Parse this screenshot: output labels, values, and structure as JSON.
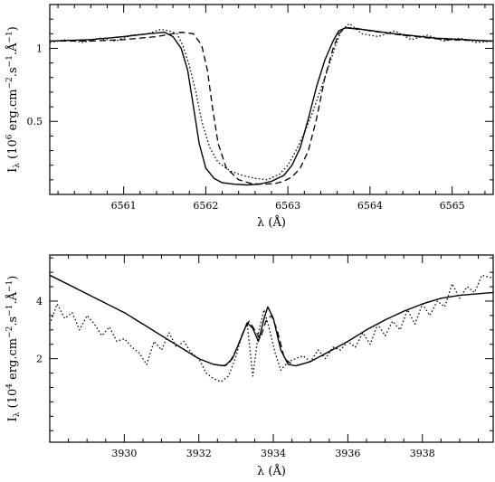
{
  "chart_data": [
    {
      "type": "line",
      "xlim": [
        6560.1,
        6565.5
      ],
      "ylim": [
        0.0,
        1.3
      ],
      "xticks_major": [
        6561,
        6562,
        6563,
        6564,
        6565
      ],
      "xtick_labels": [
        "6561",
        "6562",
        "6563",
        "6564",
        "6565"
      ],
      "yticks_major": [
        0.5,
        1.0
      ],
      "ytick_labels": [
        "0.5",
        "1"
      ],
      "xlabel": "λ (Å)",
      "ylabel": {
        "main": "I",
        "sub": "λ",
        "unit": " (10",
        "exp": "6",
        "unit2": " erg.cm",
        "e1": "−2",
        "mid": ".s",
        "e2": "−1",
        "mid2": ".Å",
        "e3": "−1",
        "end": ")"
      },
      "grid": false,
      "series": [
        {
          "style": "solid",
          "x": [
            6560.1,
            6560.6,
            6561.0,
            6561.3,
            6561.5,
            6561.6,
            6561.7,
            6561.78,
            6561.85,
            6561.92,
            6562.0,
            6562.1,
            6562.2,
            6562.35,
            6562.5,
            6562.65,
            6562.8,
            6562.95,
            6563.05,
            6563.15,
            6563.25,
            6563.35,
            6563.45,
            6563.55,
            6563.62,
            6563.7,
            6563.9,
            6564.3,
            6564.8,
            6565.5
          ],
          "y": [
            1.05,
            1.06,
            1.08,
            1.1,
            1.11,
            1.08,
            1.0,
            0.85,
            0.6,
            0.35,
            0.18,
            0.11,
            0.08,
            0.07,
            0.065,
            0.07,
            0.09,
            0.13,
            0.2,
            0.32,
            0.52,
            0.74,
            0.92,
            1.05,
            1.12,
            1.14,
            1.13,
            1.1,
            1.07,
            1.05
          ]
        },
        {
          "style": "dashed",
          "x": [
            6560.1,
            6560.6,
            6561.0,
            6561.4,
            6561.7,
            6561.85,
            6561.95,
            6562.02,
            6562.08,
            6562.15,
            6562.25,
            6562.4,
            6562.55,
            6562.7,
            6562.85,
            6562.95,
            6563.05,
            6563.15,
            6563.25,
            6563.35,
            6563.45,
            6563.55,
            6563.62,
            6563.7,
            6563.8,
            6564.0,
            6564.4,
            6564.9,
            6565.5
          ],
          "y": [
            1.05,
            1.05,
            1.06,
            1.08,
            1.11,
            1.1,
            1.02,
            0.85,
            0.6,
            0.35,
            0.18,
            0.1,
            0.075,
            0.07,
            0.075,
            0.09,
            0.12,
            0.18,
            0.3,
            0.52,
            0.8,
            1.0,
            1.1,
            1.14,
            1.14,
            1.12,
            1.09,
            1.06,
            1.05
          ]
        },
        {
          "style": "dotted",
          "x": [
            6560.1,
            6560.3,
            6560.5,
            6560.7,
            6560.9,
            6561.1,
            6561.3,
            6561.45,
            6561.55,
            6561.65,
            6561.72,
            6561.8,
            6561.88,
            6561.95,
            6562.05,
            6562.15,
            6562.3,
            6562.45,
            6562.6,
            6562.75,
            6562.9,
            6563.0,
            6563.1,
            6563.2,
            6563.3,
            6563.4,
            6563.5,
            6563.58,
            6563.65,
            6563.75,
            6563.9,
            6564.1,
            6564.3,
            6564.5,
            6564.7,
            6564.9,
            6565.1,
            6565.3,
            6565.5
          ],
          "y": [
            1.04,
            1.06,
            1.04,
            1.07,
            1.05,
            1.09,
            1.1,
            1.13,
            1.12,
            1.1,
            1.02,
            0.88,
            0.7,
            0.5,
            0.32,
            0.22,
            0.16,
            0.13,
            0.11,
            0.1,
            0.14,
            0.2,
            0.3,
            0.42,
            0.56,
            0.72,
            0.88,
            1.02,
            1.12,
            1.17,
            1.1,
            1.08,
            1.12,
            1.06,
            1.09,
            1.05,
            1.07,
            1.04,
            1.05
          ]
        }
      ]
    },
    {
      "type": "line",
      "xlim": [
        3928.0,
        3939.9
      ],
      "ylim": [
        -0.9,
        5.6
      ],
      "xticks_major": [
        3930,
        3932,
        3934,
        3936,
        3938
      ],
      "xtick_labels": [
        "3930",
        "3932",
        "3934",
        "3936",
        "3938"
      ],
      "yticks_major": [
        2,
        4
      ],
      "ytick_labels": [
        "2",
        "4"
      ],
      "xlabel": "λ (Å)",
      "ylabel": {
        "main": "I",
        "sub": "λ",
        "unit": " (10",
        "exp": "4",
        "unit2": " erg.cm",
        "e1": "−2",
        "mid": ".s",
        "e2": "−1",
        "mid2": ".Å",
        "e3": "−1",
        "end": ")"
      },
      "grid": false,
      "series": [
        {
          "style": "solid",
          "x": [
            3928.0,
            3929.0,
            3930.0,
            3930.5,
            3931.0,
            3931.5,
            3932.0,
            3932.4,
            3932.7,
            3932.9,
            3933.1,
            3933.3,
            3933.45,
            3933.6,
            3933.75,
            3933.85,
            3934.0,
            3934.2,
            3934.4,
            3934.6,
            3935.0,
            3935.5,
            3936.0,
            3936.5,
            3937.0,
            3937.5,
            3938.0,
            3938.5,
            3939.0,
            3939.9
          ],
          "y": [
            4.9,
            4.25,
            3.6,
            3.2,
            2.8,
            2.4,
            2.0,
            1.8,
            1.75,
            2.0,
            2.6,
            3.25,
            3.05,
            2.6,
            3.4,
            3.8,
            3.4,
            2.3,
            1.8,
            1.75,
            1.9,
            2.25,
            2.6,
            3.0,
            3.35,
            3.65,
            3.9,
            4.1,
            4.2,
            4.3
          ]
        },
        {
          "style": "dashed",
          "x": [
            3932.6,
            3932.8,
            3933.0,
            3933.2,
            3933.35,
            3933.5,
            3933.65,
            3933.8,
            3933.95,
            3934.1,
            3934.3,
            3934.5
          ],
          "y": [
            1.75,
            1.8,
            2.3,
            2.95,
            3.3,
            3.0,
            2.7,
            3.3,
            3.5,
            3.0,
            2.0,
            1.8
          ]
        },
        {
          "style": "dotted",
          "x": [
            3928.0,
            3928.2,
            3928.4,
            3928.6,
            3928.8,
            3929.0,
            3929.2,
            3929.4,
            3929.6,
            3929.8,
            3930.0,
            3930.2,
            3930.4,
            3930.6,
            3930.8,
            3931.0,
            3931.2,
            3931.4,
            3931.6,
            3931.8,
            3932.0,
            3932.2,
            3932.4,
            3932.6,
            3932.8,
            3933.0,
            3933.15,
            3933.3,
            3933.45,
            3933.6,
            3933.75,
            3933.9,
            3934.05,
            3934.2,
            3934.4,
            3934.6,
            3934.8,
            3935.0,
            3935.2,
            3935.4,
            3935.6,
            3935.8,
            3936.0,
            3936.2,
            3936.4,
            3936.6,
            3936.8,
            3937.0,
            3937.2,
            3937.4,
            3937.6,
            3937.8,
            3938.0,
            3938.2,
            3938.4,
            3938.6,
            3938.8,
            3939.0,
            3939.2,
            3939.4,
            3939.6,
            3939.9
          ],
          "y": [
            3.2,
            3.9,
            3.4,
            3.6,
            3.0,
            3.5,
            3.2,
            2.8,
            3.1,
            2.6,
            2.7,
            2.4,
            2.2,
            1.8,
            2.6,
            2.3,
            2.9,
            2.4,
            2.6,
            2.2,
            2.0,
            1.5,
            1.3,
            1.2,
            1.4,
            2.1,
            2.8,
            3.2,
            1.4,
            2.9,
            3.7,
            3.0,
            2.2,
            1.6,
            1.9,
            2.0,
            2.1,
            1.9,
            2.3,
            2.0,
            2.4,
            2.3,
            2.6,
            2.4,
            2.9,
            2.5,
            3.2,
            2.8,
            3.3,
            3.0,
            3.7,
            3.2,
            3.9,
            3.5,
            4.0,
            3.8,
            4.6,
            4.1,
            4.5,
            4.3,
            4.9,
            4.8
          ]
        }
      ]
    }
  ]
}
